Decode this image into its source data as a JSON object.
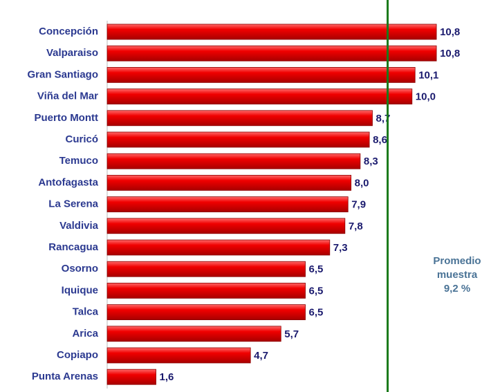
{
  "chart_data": {
    "type": "bar",
    "orientation": "horizontal",
    "categories": [
      "Concepción",
      "Valparaiso",
      "Gran Santiago",
      "Viña del Mar",
      "Puerto Montt",
      "Curicó",
      "Temuco",
      "Antofagasta",
      "La Serena",
      "Valdivia",
      "Rancagua",
      "Osorno",
      "Iquique",
      "Talca",
      "Arica",
      "Copiapo",
      "Punta Arenas"
    ],
    "values": [
      10.8,
      10.8,
      10.1,
      10.0,
      8.7,
      8.6,
      8.3,
      8.0,
      7.9,
      7.8,
      7.3,
      6.5,
      6.5,
      6.5,
      5.7,
      4.7,
      1.6
    ],
    "value_labels": [
      "10,8",
      "10,8",
      "10,1",
      "10,0",
      "8,7",
      "8,6",
      "8,3",
      "8,0",
      "7,9",
      "7,8",
      "7,3",
      "6,5",
      "6,5",
      "6,5",
      "5,7",
      "4,7",
      "1,6"
    ],
    "color": "#e00000",
    "xlim": [
      0,
      12.5
    ],
    "reference_line": {
      "value": 9.2,
      "color": "#1a7a1a",
      "label": [
        "Promedio",
        "muestra",
        "9,2 %"
      ]
    }
  }
}
